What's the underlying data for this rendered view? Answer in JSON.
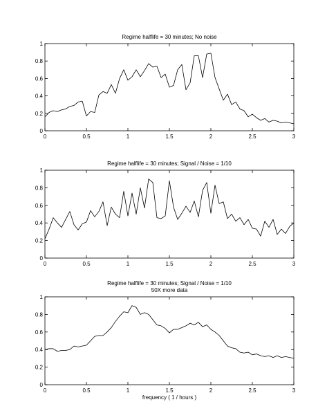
{
  "figure": {
    "xlabel": "frequency ( 1 / hours )"
  },
  "chart_data": [
    {
      "type": "line",
      "title_lines": [
        "Regime halflife = 30 minutes; No noise"
      ],
      "xlim": [
        0,
        3
      ],
      "ylim": [
        0,
        1
      ],
      "xticks": [
        "0",
        "0.5",
        "1",
        "1.5",
        "2",
        "2.5",
        "3"
      ],
      "yticks": [
        "0",
        "0.2",
        "0.4",
        "0.6",
        "0.8",
        "1"
      ],
      "grid": false,
      "series": [
        {
          "color": "#000000",
          "x": [
            0,
            0.05,
            0.1,
            0.15,
            0.2,
            0.25,
            0.3,
            0.35,
            0.4,
            0.45,
            0.5,
            0.55,
            0.6,
            0.65,
            0.7,
            0.75,
            0.8,
            0.85,
            0.9,
            0.95,
            1,
            1.05,
            1.1,
            1.15,
            1.2,
            1.25,
            1.3,
            1.35,
            1.4,
            1.45,
            1.5,
            1.55,
            1.6,
            1.65,
            1.7,
            1.75,
            1.8,
            1.85,
            1.9,
            1.95,
            2,
            2.05,
            2.1,
            2.15,
            2.2,
            2.25,
            2.3,
            2.35,
            2.4,
            2.45,
            2.5,
            2.55,
            2.6,
            2.65,
            2.7,
            2.75,
            2.8,
            2.85,
            2.9,
            2.95,
            3
          ],
          "y": [
            0.16,
            0.21,
            0.23,
            0.22,
            0.24,
            0.25,
            0.28,
            0.29,
            0.33,
            0.34,
            0.17,
            0.22,
            0.21,
            0.41,
            0.45,
            0.43,
            0.53,
            0.43,
            0.6,
            0.7,
            0.58,
            0.62,
            0.7,
            0.62,
            0.69,
            0.77,
            0.73,
            0.74,
            0.61,
            0.65,
            0.5,
            0.52,
            0.7,
            0.76,
            0.47,
            0.55,
            0.86,
            0.86,
            0.61,
            0.88,
            0.89,
            0.61,
            0.48,
            0.35,
            0.42,
            0.3,
            0.33,
            0.25,
            0.23,
            0.16,
            0.19,
            0.15,
            0.12,
            0.14,
            0.1,
            0.12,
            0.11,
            0.09,
            0.1,
            0.09,
            0.08
          ]
        }
      ]
    },
    {
      "type": "line",
      "title_lines": [
        "Regime halflife = 30 minutes; Signal / Noise = 1/10"
      ],
      "xlim": [
        0,
        3
      ],
      "ylim": [
        0,
        1
      ],
      "xticks": [
        "0",
        "0.5",
        "1",
        "1.5",
        "2",
        "2.5",
        "3"
      ],
      "yticks": [
        "0",
        "0.2",
        "0.4",
        "0.6",
        "0.8",
        "1"
      ],
      "grid": false,
      "series": [
        {
          "color": "#000000",
          "x": [
            0,
            0.05,
            0.1,
            0.15,
            0.2,
            0.25,
            0.3,
            0.35,
            0.4,
            0.45,
            0.5,
            0.55,
            0.6,
            0.65,
            0.7,
            0.75,
            0.8,
            0.85,
            0.9,
            0.95,
            1,
            1.05,
            1.1,
            1.15,
            1.2,
            1.25,
            1.3,
            1.35,
            1.4,
            1.45,
            1.5,
            1.55,
            1.6,
            1.65,
            1.7,
            1.75,
            1.8,
            1.85,
            1.9,
            1.95,
            2,
            2.05,
            2.1,
            2.15,
            2.2,
            2.25,
            2.3,
            2.35,
            2.4,
            2.45,
            2.5,
            2.55,
            2.6,
            2.65,
            2.7,
            2.75,
            2.8,
            2.85,
            2.9,
            2.95,
            3
          ],
          "y": [
            0.22,
            0.33,
            0.46,
            0.4,
            0.35,
            0.44,
            0.53,
            0.38,
            0.32,
            0.39,
            0.41,
            0.54,
            0.47,
            0.53,
            0.64,
            0.37,
            0.58,
            0.5,
            0.46,
            0.76,
            0.48,
            0.74,
            0.5,
            0.8,
            0.57,
            0.9,
            0.86,
            0.46,
            0.45,
            0.48,
            0.88,
            0.58,
            0.44,
            0.51,
            0.59,
            0.52,
            0.65,
            0.47,
            0.77,
            0.86,
            0.51,
            0.83,
            0.62,
            0.64,
            0.45,
            0.5,
            0.42,
            0.46,
            0.38,
            0.44,
            0.34,
            0.33,
            0.25,
            0.42,
            0.35,
            0.44,
            0.27,
            0.33,
            0.28,
            0.36,
            0.4
          ]
        }
      ]
    },
    {
      "type": "line",
      "title_lines": [
        "Regime halflife = 30 minutes; Signal / Noise = 1/10",
        "50X more data"
      ],
      "xlabel": "frequency ( 1 / hours )",
      "xlim": [
        0,
        3
      ],
      "ylim": [
        0,
        1
      ],
      "xticks": [
        "0",
        "0.5",
        "1",
        "1.5",
        "2",
        "2.5",
        "3"
      ],
      "yticks": [
        "0",
        "0.2",
        "0.4",
        "0.6",
        "0.8",
        "1"
      ],
      "grid": false,
      "series": [
        {
          "color": "#000000",
          "x": [
            0,
            0.05,
            0.1,
            0.15,
            0.2,
            0.25,
            0.3,
            0.35,
            0.4,
            0.45,
            0.5,
            0.55,
            0.6,
            0.65,
            0.7,
            0.75,
            0.8,
            0.85,
            0.9,
            0.95,
            1,
            1.05,
            1.1,
            1.15,
            1.2,
            1.25,
            1.3,
            1.35,
            1.4,
            1.45,
            1.5,
            1.55,
            1.6,
            1.65,
            1.7,
            1.75,
            1.8,
            1.85,
            1.9,
            1.95,
            2,
            2.05,
            2.1,
            2.15,
            2.2,
            2.25,
            2.3,
            2.35,
            2.4,
            2.45,
            2.5,
            2.55,
            2.6,
            2.65,
            2.7,
            2.75,
            2.8,
            2.85,
            2.9,
            2.95,
            3
          ],
          "y": [
            0.4,
            0.41,
            0.41,
            0.38,
            0.39,
            0.39,
            0.4,
            0.44,
            0.43,
            0.44,
            0.45,
            0.5,
            0.55,
            0.56,
            0.56,
            0.6,
            0.65,
            0.72,
            0.78,
            0.83,
            0.82,
            0.9,
            0.88,
            0.8,
            0.82,
            0.8,
            0.74,
            0.68,
            0.67,
            0.64,
            0.59,
            0.63,
            0.63,
            0.65,
            0.67,
            0.7,
            0.68,
            0.71,
            0.66,
            0.68,
            0.63,
            0.6,
            0.56,
            0.5,
            0.44,
            0.42,
            0.41,
            0.37,
            0.36,
            0.37,
            0.34,
            0.35,
            0.33,
            0.32,
            0.33,
            0.31,
            0.33,
            0.31,
            0.32,
            0.31,
            0.3
          ]
        }
      ]
    }
  ]
}
